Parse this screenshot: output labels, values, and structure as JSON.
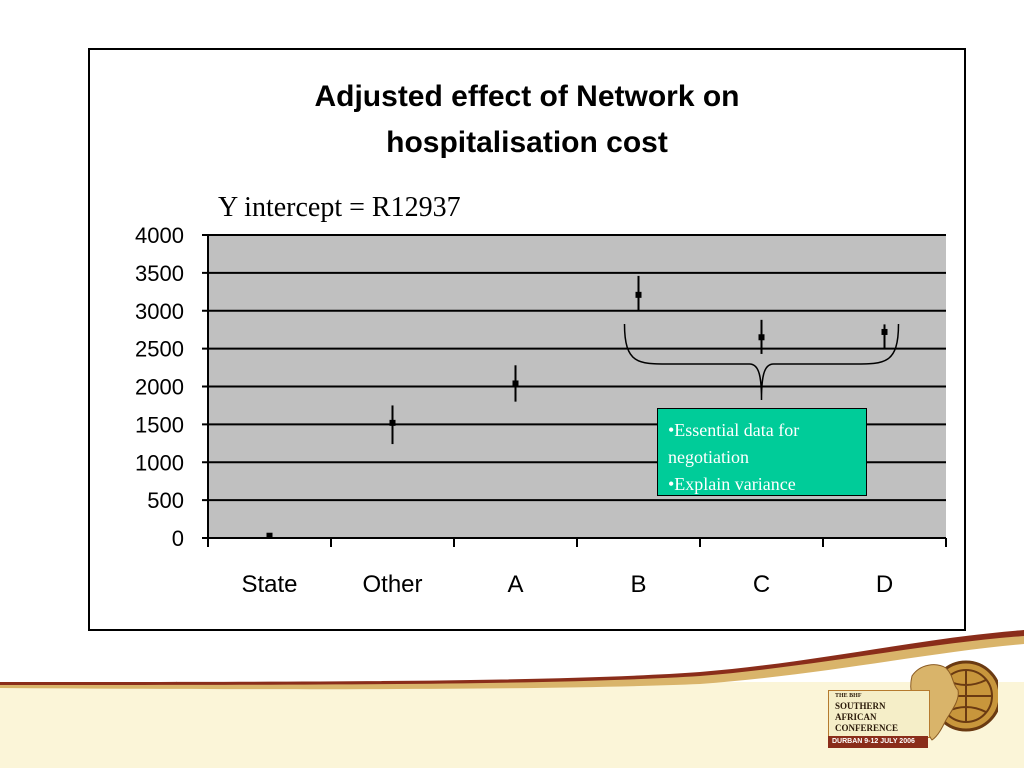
{
  "chart_data": {
    "type": "scatter",
    "title": "Adjusted effect of Network on hospitalisation cost",
    "title_lines": [
      "Adjusted effect of Network on",
      "hospitalisation cost"
    ],
    "subtitle": "Y intercept = R12937",
    "categories": [
      "State",
      "Other",
      "A",
      "B",
      "C",
      "D"
    ],
    "values": [
      30,
      1520,
      2040,
      3210,
      2650,
      2720
    ],
    "error_low": [
      20,
      1240,
      1800,
      3010,
      2430,
      2500
    ],
    "error_high": [
      40,
      1750,
      2280,
      3460,
      2880,
      2820
    ],
    "ylim": [
      0,
      4000
    ],
    "yticks": [
      0,
      500,
      1000,
      1500,
      2000,
      2500,
      3000,
      3500,
      4000
    ],
    "grid": true,
    "plot_background": "#c0c0c0",
    "annotation": {
      "lines": [
        "•Essential data for",
        "negotiation",
        "•Explain variance"
      ],
      "background": "#00cc99",
      "brace_spans_categories": [
        "B",
        "D"
      ]
    }
  },
  "branding": {
    "logo_lines": [
      "THE BHF",
      "SOUTHERN",
      "AFRICAN",
      "CONFERENCE"
    ],
    "logo_band": "DURBAN  9-12 JULY 2006",
    "accent_colors": [
      "#8a2d1a",
      "#c8963c",
      "#f7ecc0"
    ]
  }
}
